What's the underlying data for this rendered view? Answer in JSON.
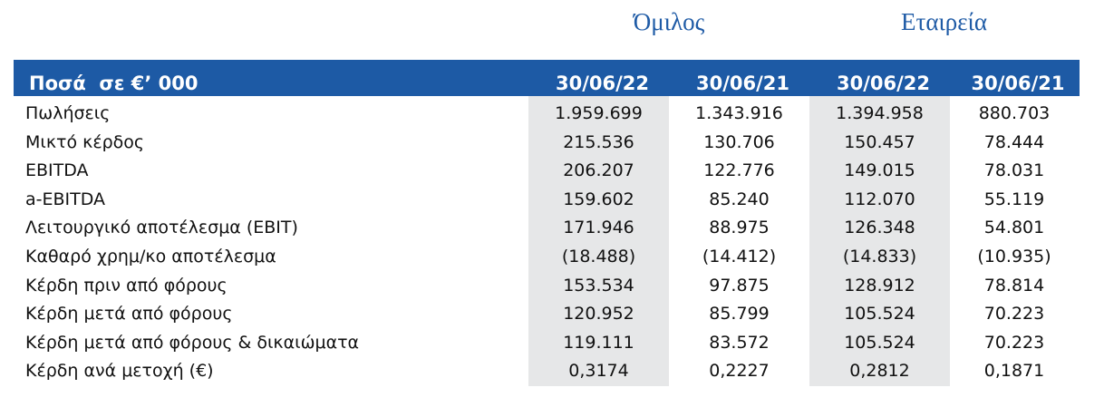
{
  "groups": [
    "Όμιλος",
    "Εταιρεία"
  ],
  "table": {
    "header": [
      "Ποσά  σε €’ 000",
      "30/06/22",
      "30/06/21",
      "30/06/22",
      "30/06/21"
    ],
    "rows": [
      [
        "Πωλήσεις",
        "1.959.699",
        "1.343.916",
        "1.394.958",
        "880.703"
      ],
      [
        "Μικτό κέρδος",
        "215.536",
        "130.706",
        "150.457",
        "78.444"
      ],
      [
        "EBITDA",
        "206.207",
        "122.776",
        "149.015",
        "78.031"
      ],
      [
        "a-EBITDA",
        "159.602",
        "85.240",
        "112.070",
        "55.119"
      ],
      [
        "Λειτουργικό αποτέλεσμα (EBIT)",
        "171.946",
        "88.975",
        "126.348",
        "54.801"
      ],
      [
        "Καθαρό χρημ/κο αποτέλεσμα",
        "(18.488)",
        "(14.412)",
        "(14.833)",
        "(10.935)"
      ],
      [
        "Κέρδη πριν από φόρους",
        "153.534",
        "97.875",
        "128.912",
        "78.814"
      ],
      [
        "Κέρδη μετά από φόρους",
        "120.952",
        "85.799",
        "105.524",
        "70.223"
      ],
      [
        "Κέρδη μετά από φόρους & δικαιώματα",
        "119.111",
        "83.572",
        "105.524",
        "70.223"
      ],
      [
        "Κέρδη ανά μετοχή (€)",
        "0,3174",
        "0,2227",
        "0,2812",
        "0,1871"
      ]
    ]
  }
}
